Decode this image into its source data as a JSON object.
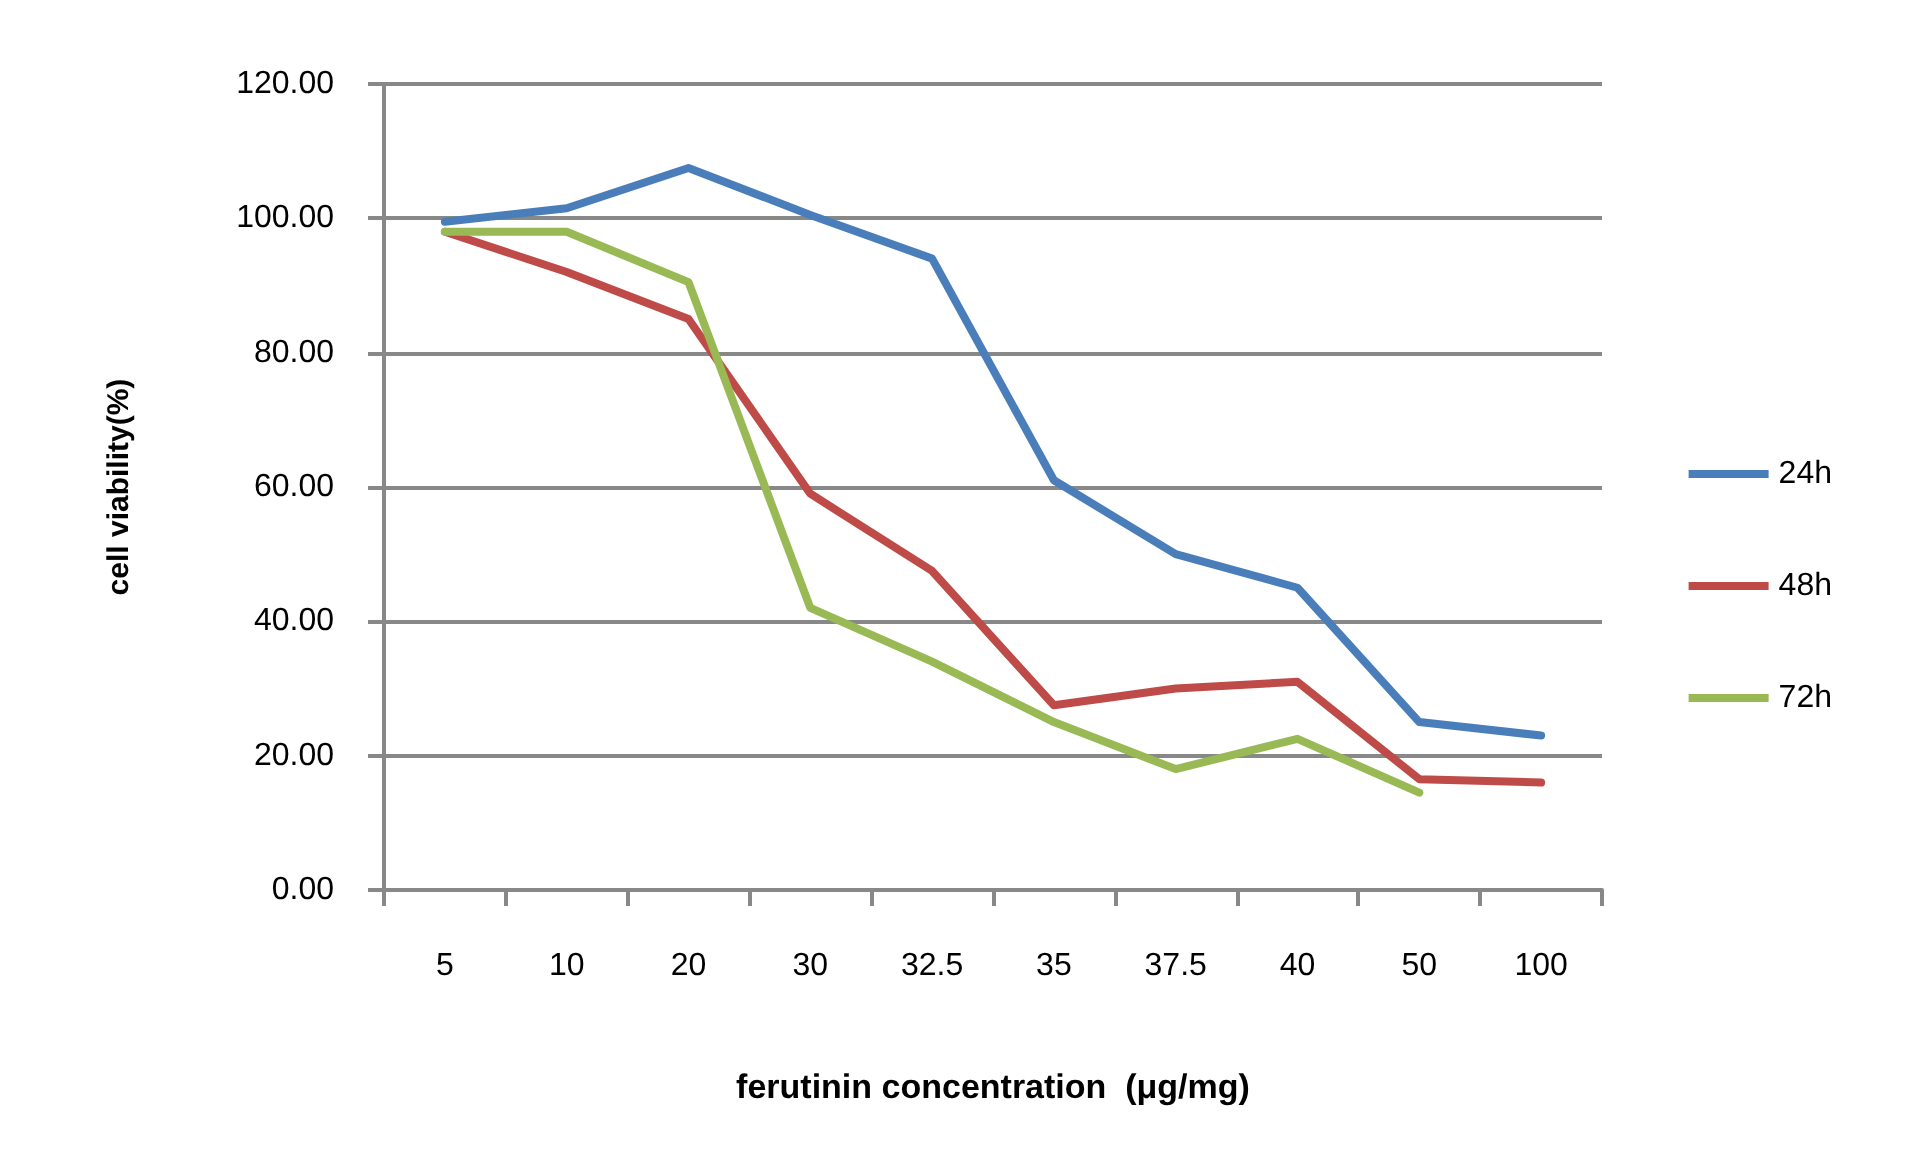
{
  "chart_data": {
    "type": "line",
    "xlabel": "ferutinin concentration  (μg/mg)",
    "ylabel": "cell viability(%)",
    "categories": [
      "5",
      "10",
      "20",
      "30",
      "32.5",
      "35",
      "37.5",
      "40",
      "50",
      "100"
    ],
    "series": [
      {
        "name": "24h",
        "color": "#4a7ebb",
        "values": [
          99.5,
          101.5,
          107.5,
          100.5,
          94,
          61,
          50,
          45,
          25,
          23
        ]
      },
      {
        "name": "48h",
        "color": "#be4b48",
        "values": [
          98,
          92,
          85,
          59,
          47.5,
          27.5,
          30,
          31,
          16.5,
          16
        ]
      },
      {
        "name": "72h",
        "color": "#98b954",
        "values": [
          98,
          98,
          90.5,
          42,
          34,
          25,
          18,
          22.5,
          14.5,
          null
        ]
      }
    ],
    "ylim": [
      0,
      120
    ],
    "yticks": [
      {
        "value": 0,
        "label": "0.00"
      },
      {
        "value": 20,
        "label": "20.00"
      },
      {
        "value": 40,
        "label": "40.00"
      },
      {
        "value": 60,
        "label": "60.00"
      },
      {
        "value": 80,
        "label": "80.00"
      },
      {
        "value": 100,
        "label": "100.00"
      },
      {
        "value": 120,
        "label": "120.00"
      }
    ],
    "grid": "y",
    "legend": "right",
    "marker": "none",
    "line_style": "solid"
  }
}
